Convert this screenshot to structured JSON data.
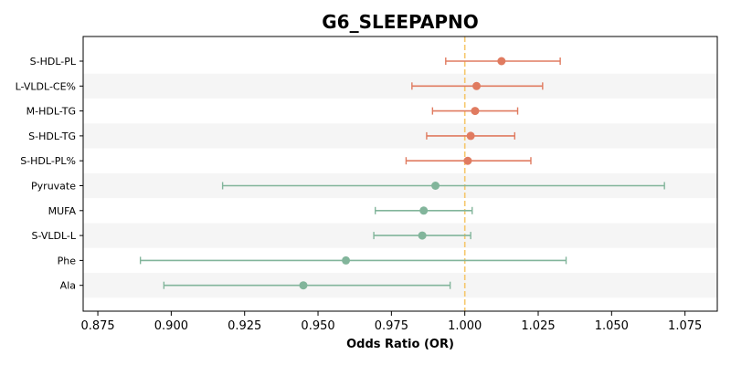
{
  "chart_data": {
    "type": "forest",
    "title": "G6_SLEEPAPNO",
    "xlabel": "Odds Ratio (OR)",
    "xlim": [
      0.87,
      1.086
    ],
    "xticks": [
      "0.875",
      "0.900",
      "0.925",
      "0.950",
      "0.975",
      "1.000",
      "1.025",
      "1.050",
      "1.075"
    ],
    "reference_line": 1.0,
    "reference_color": "#f5c76b",
    "positive_color": "#e07b60",
    "negative_color": "#82b59b",
    "band_color": "#f5f5f5",
    "categories": [
      "S-HDL-PL",
      "L-VLDL-CE%",
      "M-HDL-TG",
      "S-HDL-TG",
      "S-HDL-PL%",
      "Pyruvate",
      "MUFA",
      "S-VLDL-L",
      "Phe",
      "Ala"
    ],
    "or": [
      1.0125,
      1.004,
      1.0035,
      1.002,
      1.001,
      0.99,
      0.986,
      0.9855,
      0.9595,
      0.945
    ],
    "lower": [
      0.9935,
      0.982,
      0.989,
      0.987,
      0.98,
      0.9175,
      0.9695,
      0.969,
      0.8895,
      0.8975
    ],
    "upper": [
      1.0325,
      1.0265,
      1.018,
      1.017,
      1.0225,
      1.068,
      1.0025,
      1.002,
      1.0345,
      0.995
    ]
  }
}
